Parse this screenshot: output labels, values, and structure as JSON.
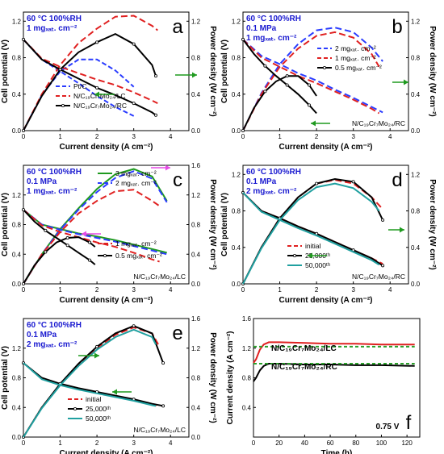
{
  "chart_data": [
    {
      "id": "a",
      "type": "line",
      "panel_letter": "a",
      "xlabel": "Current density (A cm⁻²)",
      "ylabel": "Cell potential (V)",
      "y2label": "Power density (W cm⁻²)",
      "xlim": [
        0,
        4.5
      ],
      "ylim": [
        0,
        1.3
      ],
      "y2lim": [
        0,
        1.3
      ],
      "xticks": [
        "0",
        "1",
        "2",
        "3",
        "4"
      ],
      "yticks": [
        "0.0",
        "0.4",
        "0.8",
        "1.2"
      ],
      "y2ticks": [
        "0.0",
        "0.4",
        "0.8",
        "1.2"
      ],
      "conditions": [
        "60 °C 100%RH",
        "1 mgₓₐₜ. cm⁻²"
      ],
      "legend": [
        "Pt/C",
        "N/C₁₉Cr₇Mo₂₄/LC",
        "N/C₁₉Cr₇Mo₂₄/RC"
      ],
      "series": [
        {
          "name": "Pt/C",
          "color": "#2a3cff",
          "dash": "6,3",
          "x": [
            0,
            0.5,
            1.0,
            1.5,
            2.0,
            2.5,
            3.0
          ],
          "polarization": [
            1.0,
            0.78,
            0.65,
            0.52,
            0.38,
            0.26,
            0.16
          ],
          "power": [
            0,
            0.39,
            0.65,
            0.78,
            0.78,
            0.66,
            0.48
          ]
        },
        {
          "name": "N/C₁₉Cr₇Mo₂₄/LC",
          "color": "#e02020",
          "dash": "8,4",
          "x": [
            0,
            0.5,
            1.0,
            1.5,
            2.0,
            2.5,
            3.0,
            3.5,
            3.65
          ],
          "polarization": [
            1.0,
            0.79,
            0.7,
            0.63,
            0.56,
            0.5,
            0.42,
            0.33,
            0.3
          ],
          "power": [
            0,
            0.4,
            0.72,
            0.96,
            1.12,
            1.25,
            1.26,
            1.15,
            1.1
          ]
        },
        {
          "name": "N/C₁₉Cr₇Mo₂₄/RC",
          "color": "#000000",
          "dash": "none",
          "x": [
            0,
            0.5,
            1.0,
            1.5,
            2.0,
            2.5,
            3.0,
            3.5,
            3.6
          ],
          "polarization": [
            1.0,
            0.78,
            0.67,
            0.57,
            0.47,
            0.39,
            0.3,
            0.2,
            0.17
          ],
          "power": [
            0,
            0.38,
            0.67,
            0.86,
            0.97,
            1.06,
            0.95,
            0.72,
            0.6
          ]
        }
      ]
    },
    {
      "id": "b",
      "type": "line",
      "panel_letter": "b",
      "xlabel": "Current density (A cm⁻²)",
      "ylabel": "Cell potential (V)",
      "y2label": "Power density (W cm⁻²)",
      "xlim": [
        0,
        4.5
      ],
      "ylim": [
        0,
        1.3
      ],
      "y2lim": [
        0,
        1.3
      ],
      "xticks": [
        "0",
        "1",
        "2",
        "3",
        "4"
      ],
      "yticks": [
        "0.0",
        "0.4",
        "0.8",
        "1.2"
      ],
      "y2ticks": [
        "0.0",
        "0.4",
        "0.8",
        "1.2"
      ],
      "conditions": [
        "60 °C 100%RH",
        "0.1 MPa",
        "1 mgₓₐₜ. cm⁻²"
      ],
      "note": "N/C₁₉Cr₇Mo₂₄/RC",
      "legend": [
        "2 mgₓₐₜ. cm⁻²",
        "1 mgₓₐₜ. cm⁻²",
        "0.5 mgₓₐₜ. cm⁻²"
      ],
      "series": [
        {
          "name": "2 mgₓₐₜ. cm⁻²",
          "color": "#2a3cff",
          "dash": "8,4",
          "x": [
            0,
            0.5,
            1.0,
            1.5,
            2.0,
            2.5,
            3.0,
            3.5,
            3.8
          ],
          "polarization": [
            1.0,
            0.82,
            0.73,
            0.63,
            0.55,
            0.45,
            0.36,
            0.26,
            0.2
          ],
          "power": [
            0,
            0.41,
            0.73,
            0.95,
            1.1,
            1.13,
            1.08,
            0.91,
            0.76
          ]
        },
        {
          "name": "1 mgₓₐₜ. cm⁻²",
          "color": "#e02020",
          "dash": "8,4",
          "x": [
            0,
            0.5,
            1.0,
            1.5,
            2.0,
            2.5,
            3.0,
            3.5,
            3.7
          ],
          "polarization": [
            1.0,
            0.8,
            0.7,
            0.6,
            0.52,
            0.43,
            0.34,
            0.24,
            0.19
          ],
          "power": [
            0,
            0.4,
            0.7,
            0.9,
            1.04,
            1.08,
            1.02,
            0.84,
            0.7
          ]
        },
        {
          "name": "0.5 mgₓₐₜ. cm⁻²",
          "color": "#000000",
          "dash": "none",
          "x": [
            0,
            0.3,
            0.6,
            0.9,
            1.2,
            1.5,
            1.8,
            2.0
          ],
          "polarization": [
            1.0,
            0.84,
            0.71,
            0.6,
            0.5,
            0.4,
            0.28,
            0.19
          ],
          "power": [
            0,
            0.25,
            0.43,
            0.54,
            0.6,
            0.6,
            0.5,
            0.38
          ]
        }
      ]
    },
    {
      "id": "c",
      "type": "line",
      "panel_letter": "c",
      "xlabel": "Current density (A cm⁻²)",
      "ylabel": "Cell potential (V)",
      "y2label": "Power density (W cm⁻²)",
      "xlim": [
        0,
        4.5
      ],
      "ylim": [
        0,
        1.6
      ],
      "y2lim": [
        0,
        1.6
      ],
      "xticks": [
        "0",
        "1",
        "2",
        "3",
        "4"
      ],
      "yticks": [
        "0.0",
        "0.4",
        "0.8",
        "1.2"
      ],
      "y2ticks": [
        "0.0",
        "0.4",
        "0.8",
        "1.2",
        "1.6"
      ],
      "conditions": [
        "60 °C 100%RH",
        "0.1 MPa",
        "1 mgₓₐₜ. cm⁻²"
      ],
      "note": "N/C₁₉Cr₇Mo₂₄/LC",
      "legend": [
        "3 mgₓₐₜ. cm⁻²",
        "2 mgₓₐₜ. cm⁻²",
        "1 mgₓₐₜ. cm⁻²",
        "0.5 mgₓₐₜ. cm⁻²"
      ],
      "series": [
        {
          "name": "3 mgₓₐₜ. cm⁻²",
          "color": "#1f9a1f",
          "dash": "none",
          "x": [
            0,
            0.5,
            1.0,
            1.5,
            2.0,
            2.5,
            3.0,
            3.5,
            3.9
          ],
          "polarization": [
            1.0,
            0.8,
            0.74,
            0.68,
            0.64,
            0.59,
            0.53,
            0.47,
            0.42
          ],
          "power": [
            0,
            0.4,
            0.74,
            1.02,
            1.28,
            1.48,
            1.55,
            1.45,
            1.12
          ]
        },
        {
          "name": "2 mgₓₐₜ. cm⁻²",
          "color": "#2a3cff",
          "dash": "8,4",
          "x": [
            0,
            0.5,
            1.0,
            1.5,
            2.0,
            2.5,
            3.0,
            3.5,
            3.9
          ],
          "polarization": [
            1.0,
            0.8,
            0.73,
            0.67,
            0.62,
            0.57,
            0.51,
            0.45,
            0.4
          ],
          "power": [
            0,
            0.4,
            0.73,
            1.0,
            1.24,
            1.43,
            1.52,
            1.42,
            1.1
          ]
        },
        {
          "name": "1 mgₓₐₜ. cm⁻²",
          "color": "#e02020",
          "dash": "8,4",
          "x": [
            0,
            0.5,
            1.0,
            1.5,
            2.0,
            2.5,
            3.0,
            3.5,
            3.7
          ],
          "polarization": [
            1.0,
            0.79,
            0.7,
            0.63,
            0.56,
            0.5,
            0.42,
            0.33,
            0.3
          ],
          "power": [
            0,
            0.4,
            0.7,
            0.95,
            1.12,
            1.25,
            1.27,
            1.12,
            1.05
          ]
        },
        {
          "name": "0.5 mgₓₐₜ. cm⁻²",
          "color": "#000000",
          "dash": "none",
          "x": [
            0,
            0.3,
            0.6,
            0.9,
            1.2,
            1.5,
            1.8,
            1.95
          ],
          "polarization": [
            1.0,
            0.84,
            0.72,
            0.62,
            0.52,
            0.42,
            0.32,
            0.26
          ],
          "power": [
            0,
            0.25,
            0.43,
            0.56,
            0.62,
            0.63,
            0.56,
            0.5
          ]
        }
      ]
    },
    {
      "id": "d",
      "type": "line",
      "panel_letter": "d",
      "xlabel": "Current density (A cm⁻²)",
      "ylabel": "Cell potential (V)",
      "y2label": "Power density (W cm⁻²)",
      "xlim": [
        0,
        4.5
      ],
      "ylim": [
        0,
        1.3
      ],
      "y2lim": [
        0,
        1.3
      ],
      "xticks": [
        "0",
        "1",
        "2",
        "3",
        "4"
      ],
      "yticks": [
        "0.0",
        "0.4",
        "0.8",
        "1.2"
      ],
      "y2ticks": [
        "0.0",
        "0.4",
        "0.8",
        "1.2"
      ],
      "conditions": [
        "60 °C 100%RH",
        "0.1 MPa",
        "2 mgₓₐₜ. cm⁻²"
      ],
      "note": "N/C₁₉Cr₇Mo₂₄/RC",
      "legend": [
        "initial",
        "25,000ᵗʰ",
        "50,000ᵗʰ"
      ],
      "series": [
        {
          "name": "initial",
          "color": "#e02020",
          "dash": "8,4",
          "x": [
            0,
            0.5,
            1.0,
            1.5,
            2.0,
            2.5,
            3.0,
            3.5,
            3.8
          ],
          "polarization": [
            1.0,
            0.8,
            0.72,
            0.63,
            0.55,
            0.46,
            0.37,
            0.28,
            0.22
          ],
          "power": [
            0,
            0.4,
            0.72,
            0.95,
            1.1,
            1.14,
            1.1,
            0.95,
            0.82
          ]
        },
        {
          "name": "25,000ᵗʰ",
          "color": "#000000",
          "dash": "none",
          "x": [
            0,
            0.5,
            1.0,
            1.5,
            2.0,
            2.5,
            3.0,
            3.5,
            3.8
          ],
          "polarization": [
            1.0,
            0.8,
            0.72,
            0.63,
            0.55,
            0.46,
            0.37,
            0.28,
            0.2
          ],
          "power": [
            0,
            0.4,
            0.72,
            0.95,
            1.1,
            1.15,
            1.12,
            0.95,
            0.7
          ]
        },
        {
          "name": "50,000ᵗʰ",
          "color": "#20a0a0",
          "dash": "none",
          "x": [
            0,
            0.5,
            1.0,
            1.5,
            2.0,
            2.5,
            3.0,
            3.5,
            3.7
          ],
          "polarization": [
            1.0,
            0.79,
            0.7,
            0.61,
            0.53,
            0.44,
            0.35,
            0.26,
            0.21
          ],
          "power": [
            0,
            0.39,
            0.7,
            0.92,
            1.06,
            1.1,
            1.05,
            0.9,
            0.8
          ]
        }
      ]
    },
    {
      "id": "e",
      "type": "line",
      "panel_letter": "e",
      "xlabel": "Current density (A cm⁻²)",
      "ylabel": "Cell potential (V)",
      "y2label": "Power density (W cm⁻²)",
      "xlim": [
        0,
        4.5
      ],
      "ylim": [
        0,
        1.6
      ],
      "y2lim": [
        0,
        1.6
      ],
      "xticks": [
        "0",
        "1",
        "2",
        "3",
        "4"
      ],
      "yticks": [
        "0.0",
        "0.4",
        "0.8",
        "1.2"
      ],
      "y2ticks": [
        "0.0",
        "0.4",
        "0.8",
        "1.2",
        "1.6"
      ],
      "conditions": [
        "60 °C 100%RH",
        "0.1 MPa",
        "2 mgₓₐₜ. cm⁻²"
      ],
      "note": "N/C₁₉Cr₇Mo₂₄/LC",
      "legend": [
        "initial",
        "25,000ᵗʰ",
        "50,000ᵗʰ"
      ],
      "series": [
        {
          "name": "initial",
          "color": "#e02020",
          "dash": "8,4",
          "x": [
            0,
            0.5,
            1.0,
            1.5,
            2.0,
            2.5,
            3.0,
            3.5,
            3.7
          ],
          "polarization": [
            1.0,
            0.79,
            0.71,
            0.65,
            0.6,
            0.55,
            0.5,
            0.44,
            0.42
          ],
          "power": [
            0,
            0.4,
            0.71,
            0.98,
            1.2,
            1.38,
            1.48,
            1.4,
            1.22
          ]
        },
        {
          "name": "25,000ᵗʰ",
          "color": "#000000",
          "dash": "none",
          "x": [
            0,
            0.5,
            1.0,
            1.5,
            2.0,
            2.5,
            3.0,
            3.5,
            3.8
          ],
          "polarization": [
            1.0,
            0.8,
            0.72,
            0.66,
            0.61,
            0.56,
            0.51,
            0.45,
            0.42
          ],
          "power": [
            0,
            0.4,
            0.72,
            0.99,
            1.22,
            1.4,
            1.5,
            1.4,
            1.0
          ]
        },
        {
          "name": "50,000ᵗʰ",
          "color": "#20a0a0",
          "dash": "none",
          "x": [
            0,
            0.5,
            1.0,
            1.5,
            2.0,
            2.5,
            3.0,
            3.5,
            3.6
          ],
          "polarization": [
            1.0,
            0.78,
            0.7,
            0.64,
            0.59,
            0.54,
            0.49,
            0.43,
            0.42
          ],
          "power": [
            0,
            0.39,
            0.7,
            0.96,
            1.18,
            1.35,
            1.45,
            1.35,
            1.25
          ]
        }
      ]
    },
    {
      "id": "f",
      "type": "line",
      "panel_letter": "f",
      "xlabel": "Time (h)",
      "ylabel": "Current density (A cm⁻²)",
      "xlim": [
        0,
        130
      ],
      "ylim": [
        0,
        1.6
      ],
      "xticks": [
        "0",
        "20",
        "40",
        "60",
        "80",
        "100",
        "120"
      ],
      "yticks": [
        "0.4",
        "0.8",
        "1.2",
        "1.6"
      ],
      "annotation": "0.75 V",
      "labels": [
        "N/C₁₉Cr₇Mo₂₄/LC",
        "N/C₁₉Cr₇Mo₂₄/RC"
      ],
      "series": [
        {
          "name": "N/C₁₉Cr₇Mo₂₄/LC",
          "color": "#e02020",
          "x": [
            0,
            2,
            5,
            8,
            12,
            20,
            40,
            60,
            80,
            100,
            126
          ],
          "y": [
            1.0,
            1.05,
            1.18,
            1.25,
            1.28,
            1.28,
            1.27,
            1.26,
            1.26,
            1.25,
            1.25
          ]
        },
        {
          "name": "N/C₁₉Cr₇Mo₂₄/RC",
          "color": "#000000",
          "x": [
            0,
            2,
            5,
            8,
            12,
            20,
            40,
            60,
            80,
            100,
            126
          ],
          "y": [
            0.75,
            0.8,
            0.9,
            0.96,
            0.99,
            0.99,
            0.98,
            0.98,
            0.97,
            0.97,
            0.96
          ]
        },
        {
          "name": "",
          "color": "#2aa02a",
          "dash": "4,3",
          "x": [
            0,
            126
          ],
          "y": [
            1.22,
            1.22
          ]
        },
        {
          "name": "",
          "color": "#2aa02a",
          "dash": "4,3",
          "x": [
            0,
            126
          ],
          "y": [
            0.99,
            0.99
          ]
        }
      ]
    }
  ]
}
